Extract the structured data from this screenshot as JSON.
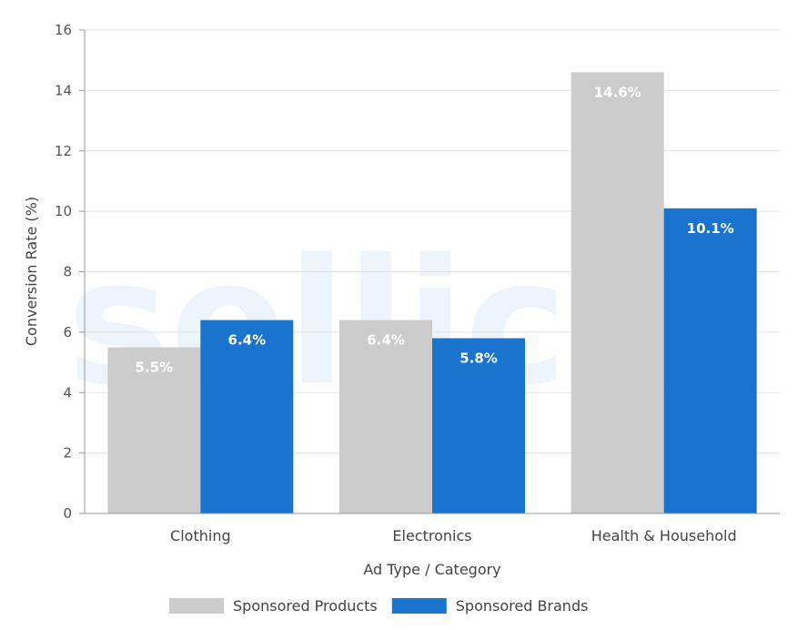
{
  "chart_data": {
    "type": "bar",
    "title": "",
    "categories": [
      "Clothing",
      "Electronics",
      "Health & Household"
    ],
    "series": [
      {
        "name": "Sponsored Products",
        "values": [
          5.5,
          6.4,
          14.6
        ],
        "labels": [
          "5.5%",
          "6.4%",
          "14.6%"
        ],
        "color": "#cccccc"
      },
      {
        "name": "Sponsored Brands",
        "values": [
          6.4,
          5.8,
          10.1
        ],
        "labels": [
          "6.4%",
          "5.8%",
          "10.1%"
        ],
        "color": "#1a73cc"
      }
    ],
    "xlabel": "Ad Type / Category",
    "ylabel": "Conversion Rate (%)",
    "ylim": [
      0,
      16
    ],
    "yticks": [
      0,
      2,
      4,
      6,
      8,
      10,
      12,
      14,
      16
    ],
    "grid": true,
    "legend": "bottom-center"
  },
  "watermark": "sellics"
}
